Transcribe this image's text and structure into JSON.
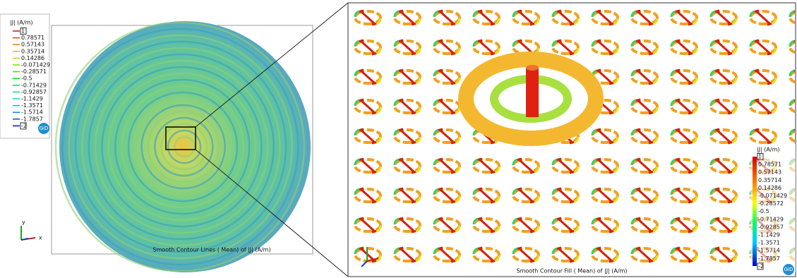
{
  "left_view": {
    "legend": {
      "title": "|J| (A/m)",
      "labels": [
        "1",
        "0.78571",
        "0.57143",
        "0.35714",
        "0.14286",
        "-0.071429",
        "-0.28571",
        "-0.5",
        "-0.71429",
        "-0.92857",
        "-1.1429",
        "-1.3571",
        "-1.5714",
        "-1.7857",
        "-2"
      ]
    },
    "caption": "Smooth Contour Lines ( Mean) of |J| (A/m)",
    "logo": "GiD",
    "axes": {
      "x": "x",
      "y": "y"
    }
  },
  "right_view": {
    "legend": {
      "title": "|J| (A/m)",
      "labels": [
        "1",
        "0.78571",
        "0.57143",
        "0.35714",
        "0.14286",
        "-0.071429",
        "-0.28572",
        "-0.5",
        "-0.71429",
        "-0.92857",
        "-1.1429",
        "-1.3571",
        "-1.5714",
        "-1.7857",
        "-2"
      ]
    },
    "caption": "Smooth Contour Fill ( Mean) of |J| (A/m)",
    "logo": "GiD"
  }
}
